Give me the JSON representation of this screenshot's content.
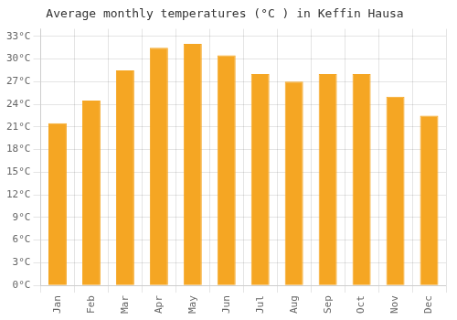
{
  "chart_data": {
    "type": "bar",
    "title": "Average monthly temperatures (°C ) in Keffin Hausa",
    "categories": [
      "Jan",
      "Feb",
      "Mar",
      "Apr",
      "May",
      "Jun",
      "Jul",
      "Aug",
      "Sep",
      "Oct",
      "Nov",
      "Dec"
    ],
    "values": [
      21.5,
      24.5,
      28.5,
      31.5,
      32.0,
      30.5,
      28.0,
      27.0,
      28.0,
      28.0,
      25.0,
      22.5
    ],
    "color": "#F5A623",
    "ylim": [
      0,
      34
    ],
    "yticks": [
      {
        "value": 0,
        "label": "0°C"
      },
      {
        "value": 3,
        "label": "3°C"
      },
      {
        "value": 6,
        "label": "6°C"
      },
      {
        "value": 9,
        "label": "9°C"
      },
      {
        "value": 12,
        "label": "12°C"
      },
      {
        "value": 15,
        "label": "15°C"
      },
      {
        "value": 18,
        "label": "18°C"
      },
      {
        "value": 21,
        "label": "21°C"
      },
      {
        "value": 24,
        "label": "24°C"
      },
      {
        "value": 27,
        "label": "27°C"
      },
      {
        "value": 30,
        "label": "30°C"
      },
      {
        "value": 33,
        "label": "33°C"
      }
    ],
    "grid": true
  }
}
